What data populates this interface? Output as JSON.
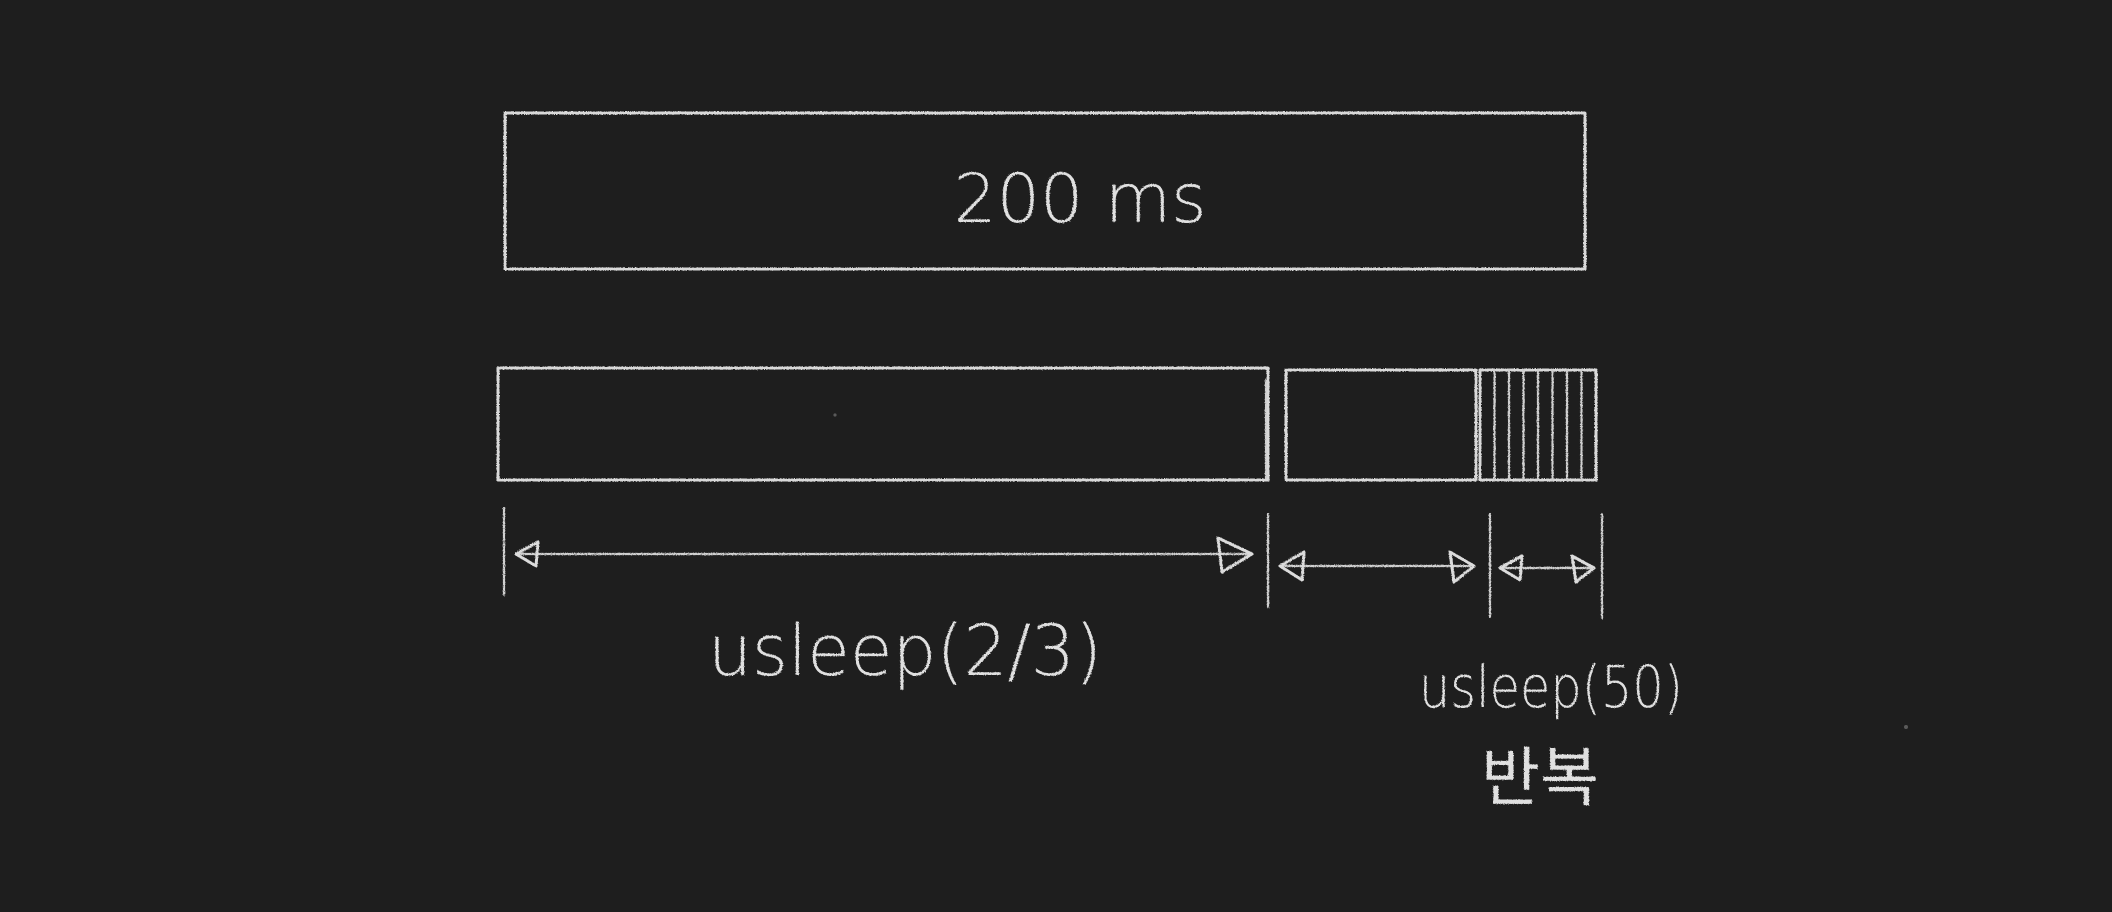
{
  "diagram": {
    "total_label": "200 ms",
    "first_span_label": "usleep(2/3)",
    "second_span_label": "usleep(50)",
    "second_span_note": "반복",
    "repeat_tick_count": 8
  },
  "colors": {
    "background": "#1e1e1e",
    "chalk": "#d9d9d9"
  }
}
